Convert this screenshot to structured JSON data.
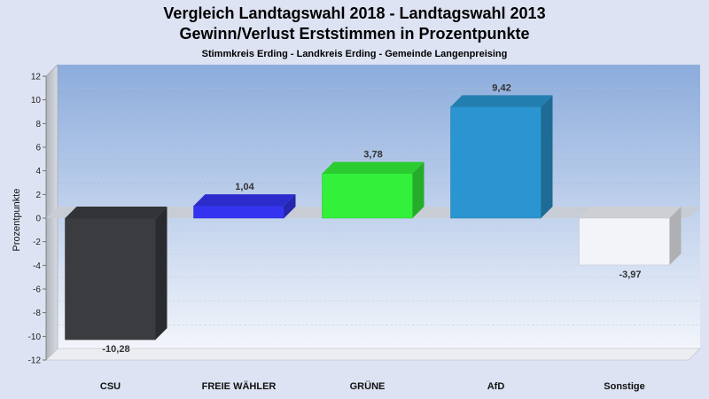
{
  "title_line1": "Vergleich Landtagswahl 2018 - Landtagswahl 2013",
  "title_line2": "Gewinn/Verlust Erststimmen in Prozentpunkte",
  "subtitle": "Stimmkreis Erding - Landkreis Erding - Gemeinde Langenpreising",
  "chart_data": {
    "type": "bar",
    "title": "Vergleich Landtagswahl 2018 - Landtagswahl 2013 Gewinn/Verlust Erststimmen in Prozentpunkte",
    "subtitle": "Stimmkreis Erding - Landkreis Erding - Gemeinde Langenpreising",
    "xlabel": "",
    "ylabel": "Prozentpunkte",
    "ylim": [
      -12,
      12
    ],
    "yticks": [
      12,
      10,
      8,
      6,
      4,
      2,
      0,
      -2,
      -4,
      -6,
      -8,
      -10,
      -12
    ],
    "categories": [
      "CSU",
      "FREIE WÄHLER",
      "GRÜNE",
      "AfD",
      "Sonstige"
    ],
    "values": [
      -10.28,
      1.04,
      3.78,
      9.42,
      -3.97
    ],
    "value_labels": [
      "-10,28",
      "1,04",
      "3,78",
      "9,42",
      "-3,97"
    ],
    "colors": [
      "#3b3c40",
      "#3434f0",
      "#33f03a",
      "#2a95d0",
      "#f2f4fa"
    ],
    "grid": true,
    "legend": "none"
  }
}
